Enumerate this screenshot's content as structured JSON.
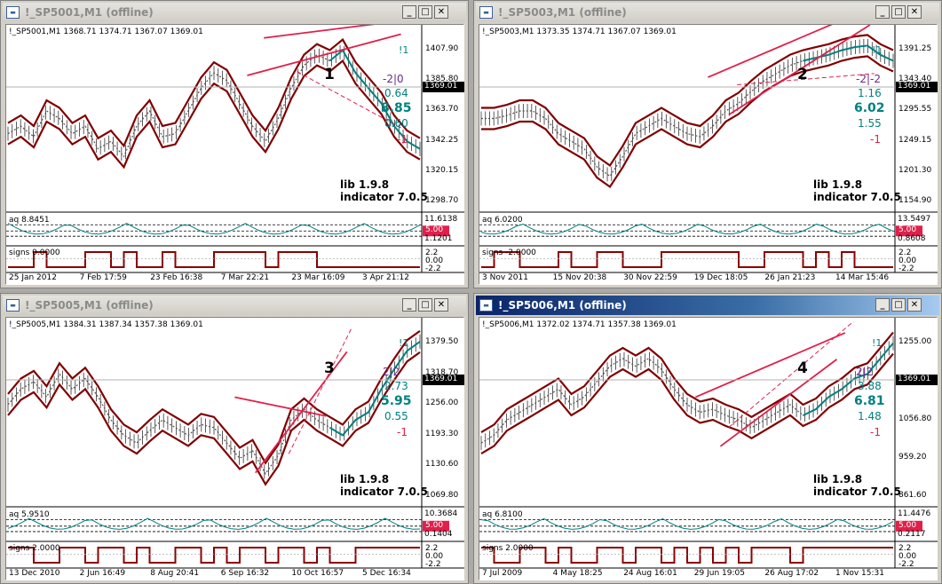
{
  "windows": [
    {
      "title": "!_SP5001,M1 (offline)",
      "active": false,
      "ohlc": "!_SP5001,M1  1368.71 1374.71 1367.07 1369.01",
      "number": "1",
      "price_axis": [
        "1407.90",
        "1385.80",
        "1363.70",
        "1342.25",
        "1320.15",
        "1298.70"
      ],
      "current_price": "1369.01",
      "side": {
        "tag": "!1",
        "ratio": "-2|0",
        "v1": "0.64",
        "v2": "8.85",
        "v3": "0.60",
        "v4": "-1"
      },
      "lib": "lib 1.9.8",
      "indicator": "indicator 7.0.5",
      "aq_label": "aq 8.8451",
      "aq_axis": {
        "top": "11.6138",
        "mid": "5.00",
        "bot": "1.1201"
      },
      "signs_label": "signs 0.0000",
      "signs_axis": [
        "2.2",
        "0.00",
        "-2.2"
      ],
      "time_axis": [
        "25 Jan 2012",
        "7 Feb 17:59",
        "23 Feb 16:38",
        "7 Mar 22:21",
        "23 Mar 16:09",
        "3 Apr 21:12"
      ]
    },
    {
      "title": "!_SP5003,M1 (offline)",
      "active": false,
      "ohlc": "!_SP5003,M1  1373.35 1374.71 1367.07 1369.01",
      "number": "2",
      "price_axis": [
        "1391.25",
        "1343.40",
        "1295.55",
        "1249.15",
        "1201.30",
        "1154.90"
      ],
      "current_price": "1369.01",
      "side": {
        "tag": "!1",
        "ratio": "-2|-2",
        "v1": "1.16",
        "v2": "6.02",
        "v3": "1.55",
        "v4": "-1"
      },
      "lib": "lib 1.9.8",
      "indicator": "indicator 7.0.5",
      "aq_label": "aq 6.0200",
      "aq_axis": {
        "top": "13.5497",
        "mid": "5.00",
        "bot": "0.8608"
      },
      "signs_label": "signs -2.0000",
      "signs_axis": [
        "2.2",
        "0.00",
        "-2.2"
      ],
      "time_axis": [
        "3 Nov 2011",
        "15 Nov 20:38",
        "30 Nov 22:59",
        "19 Dec 18:05",
        "26 Jan 21:23",
        "14 Mar 15:46"
      ]
    },
    {
      "title": "!_SP5005,M1 (offline)",
      "active": false,
      "ohlc": "!_SP5005,M1  1384.31 1387.34 1357.38 1369.01",
      "number": "3",
      "price_axis": [
        "1379.50",
        "1318.70",
        "1256.00",
        "1193.30",
        "1130.60",
        "1069.80"
      ],
      "current_price": "1369.01",
      "side": {
        "tag": "!1",
        "ratio": "2|2",
        "v1": "2.73",
        "v2": "5.95",
        "v3": "0.55",
        "v4": "-1"
      },
      "lib": "lib 1.9.8",
      "indicator": "indicator 7.0.5",
      "aq_label": "aq 5.9510",
      "aq_axis": {
        "top": "10.3684",
        "mid": "5.00",
        "bot": "0.1404"
      },
      "signs_label": "signs 2.0000",
      "signs_axis": [
        "2.2",
        "0.00",
        "-2.2"
      ],
      "time_axis": [
        "13 Dec 2010",
        "2 Jun 16:49",
        "8 Aug 20:41",
        "6 Sep 16:32",
        "10 Oct 16:57",
        "5 Dec 16:34"
      ]
    },
    {
      "title": "!_SP5006,M1 (offline)",
      "active": true,
      "ohlc": "!_SP5006,M1  1372.02 1374.71 1357.38 1369.01",
      "number": "4",
      "price_axis": [
        "1255.00",
        "1157.45",
        "1056.80",
        "959.20",
        "861.60"
      ],
      "current_price": "1369.01",
      "side": {
        "tag": "!1",
        "ratio": "2|2",
        "v1": "3.88",
        "v2": "6.81",
        "v3": "1.48",
        "v4": "-1"
      },
      "lib": "lib 1.9.8",
      "indicator": "indicator 7.0.5",
      "aq_label": "aq 6.8100",
      "aq_axis": {
        "top": "11.4476",
        "mid": "5.00",
        "bot": "0.2117"
      },
      "signs_label": "signs 2.0000",
      "signs_axis": [
        "2.2",
        "0.00",
        "-2.2"
      ],
      "time_axis": [
        "7 Jul 2009",
        "4 May 18:25",
        "24 Aug 16:01",
        "29 Jun 19:05",
        "26 Aug 17:02",
        "1 Nov 15:31"
      ]
    }
  ],
  "colors": {
    "accent": "#008080",
    "channel": "#800000",
    "trend": "#e0204a",
    "purple": "#6a2a8a",
    "mid_badge": "#e0204a"
  }
}
